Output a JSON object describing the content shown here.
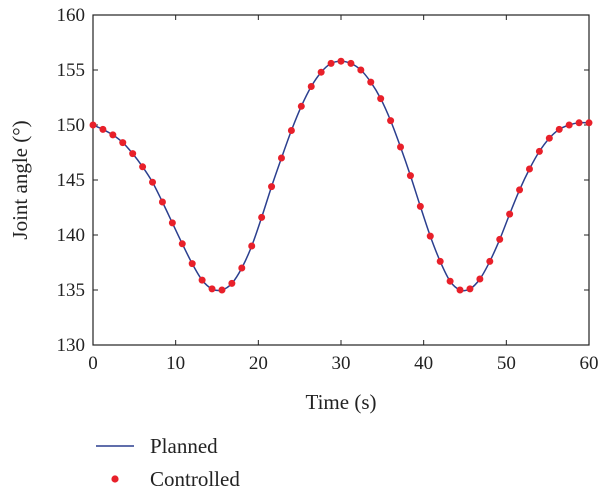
{
  "chart_data": {
    "type": "line",
    "xlabel": "Time (s)",
    "ylabel": "Joint angle (°)",
    "xlim": [
      0,
      60
    ],
    "ylim": [
      130,
      160
    ],
    "x_ticks": [
      "0",
      "10",
      "20",
      "30",
      "40",
      "50",
      "60"
    ],
    "y_ticks": [
      "130",
      "135",
      "140",
      "145",
      "150",
      "155",
      "160"
    ],
    "grid": false,
    "legend_position": "bottom-left",
    "series": [
      {
        "name": "Planned",
        "style": "line",
        "color": "#2b3f8f",
        "x": [
          0,
          1.2,
          2.4,
          3.6,
          4.8,
          6,
          7.2,
          8.4,
          9.6,
          10.8,
          12,
          13.2,
          14.4,
          15.6,
          16.8,
          18,
          19.2,
          20.4,
          21.6,
          22.8,
          24,
          25.2,
          26.4,
          27.6,
          28.8,
          30,
          31.2,
          32.4,
          33.6,
          34.8,
          36,
          37.2,
          38.4,
          39.6,
          40.8,
          42,
          43.2,
          44.4,
          45.6,
          46.8,
          48,
          49.2,
          50.4,
          51.6,
          52.8,
          54,
          55.2,
          56.4,
          57.6,
          58.8,
          60
        ],
        "y": [
          150.0,
          149.6,
          149.1,
          148.4,
          147.4,
          146.2,
          144.8,
          143.0,
          141.1,
          139.2,
          137.4,
          135.9,
          135.1,
          135.0,
          135.6,
          137.0,
          139.0,
          141.6,
          144.4,
          147.0,
          149.5,
          151.7,
          153.5,
          154.8,
          155.6,
          155.8,
          155.6,
          155.0,
          153.9,
          152.4,
          150.4,
          148.0,
          145.4,
          142.6,
          139.9,
          137.6,
          135.8,
          135.0,
          135.1,
          136.0,
          137.6,
          139.6,
          141.9,
          144.1,
          146.0,
          147.6,
          148.8,
          149.6,
          150.0,
          150.2,
          150.2
        ]
      },
      {
        "name": "Controlled",
        "style": "dots",
        "color": "#e8202a",
        "x": [
          0,
          1.2,
          2.4,
          3.6,
          4.8,
          6,
          7.2,
          8.4,
          9.6,
          10.8,
          12,
          13.2,
          14.4,
          15.6,
          16.8,
          18,
          19.2,
          20.4,
          21.6,
          22.8,
          24,
          25.2,
          26.4,
          27.6,
          28.8,
          30,
          31.2,
          32.4,
          33.6,
          34.8,
          36,
          37.2,
          38.4,
          39.6,
          40.8,
          42,
          43.2,
          44.4,
          45.6,
          46.8,
          48,
          49.2,
          50.4,
          51.6,
          52.8,
          54,
          55.2,
          56.4,
          57.6,
          58.8,
          60
        ],
        "y": [
          150.0,
          149.6,
          149.1,
          148.4,
          147.4,
          146.2,
          144.8,
          143.0,
          141.1,
          139.2,
          137.4,
          135.9,
          135.1,
          135.0,
          135.6,
          137.0,
          139.0,
          141.6,
          144.4,
          147.0,
          149.5,
          151.7,
          153.5,
          154.8,
          155.6,
          155.8,
          155.6,
          155.0,
          153.9,
          152.4,
          150.4,
          148.0,
          145.4,
          142.6,
          139.9,
          137.6,
          135.8,
          135.0,
          135.1,
          136.0,
          137.6,
          139.6,
          141.9,
          144.1,
          146.0,
          147.6,
          148.8,
          149.6,
          150.0,
          150.2,
          150.2
        ]
      }
    ]
  }
}
